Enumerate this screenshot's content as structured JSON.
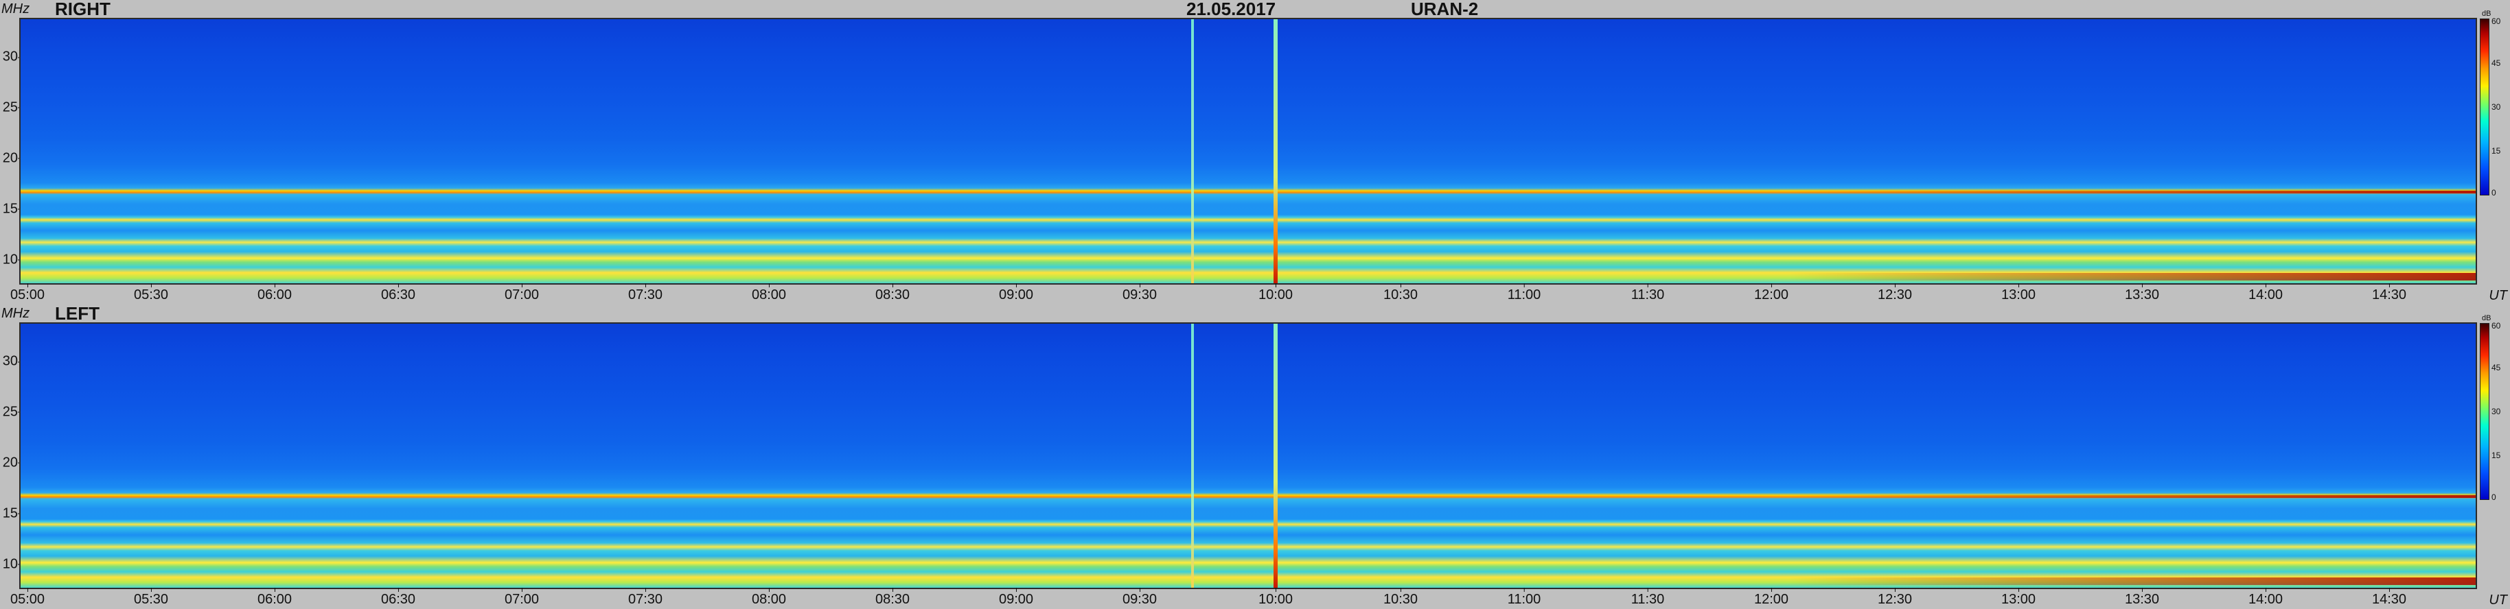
{
  "header": {
    "date": "21.05.2017",
    "instrument": "URAN-2"
  },
  "axes": {
    "y_unit": "MHz",
    "x_unit": "UT",
    "colorbar_unit": "dB"
  },
  "panels": [
    {
      "label": "RIGHT"
    },
    {
      "label": "LEFT"
    }
  ],
  "y_ticks": [
    "30",
    "25",
    "20",
    "15",
    "10"
  ],
  "x_ticks": [
    "05:00",
    "05:30",
    "06:00",
    "06:30",
    "07:00",
    "07:30",
    "08:00",
    "08:30",
    "09:00",
    "09:30",
    "10:00",
    "10:30",
    "11:00",
    "11:30",
    "12:00",
    "12:30",
    "13:00",
    "13:30",
    "14:00",
    "14:30"
  ],
  "colorbar_ticks": [
    "60",
    "45",
    "30",
    "15",
    "0"
  ],
  "colors": {
    "background": "#c0c0c0",
    "spectrum_low": "#0a3fd8",
    "spectrum_high": "#c81a00"
  },
  "chart_data": [
    {
      "type": "heatmap",
      "title": "RIGHT",
      "x": [
        "05:00",
        "05:30",
        "06:00",
        "06:30",
        "07:00",
        "07:30",
        "08:00",
        "08:30",
        "09:00",
        "09:30",
        "10:00",
        "10:30",
        "11:00",
        "11:30",
        "12:00",
        "12:30",
        "13:00",
        "13:30",
        "14:00",
        "14:30"
      ],
      "y_range_mhz": [
        8,
        34
      ],
      "y_ticks": [
        10,
        15,
        20,
        25,
        30
      ],
      "colorbar_range_db": [
        0,
        60
      ],
      "colorbar_ticks": [
        0,
        15,
        30,
        45,
        60
      ],
      "features": {
        "persistent_bands_mhz": [
          17.7,
          15.4,
          14.2,
          12.0,
          10.0
        ],
        "vertical_bursts_ut": [
          "09:40",
          "10:00"
        ]
      }
    },
    {
      "type": "heatmap",
      "title": "LEFT",
      "x": [
        "05:00",
        "05:30",
        "06:00",
        "06:30",
        "07:00",
        "07:30",
        "08:00",
        "08:30",
        "09:00",
        "09:30",
        "10:00",
        "10:30",
        "11:00",
        "11:30",
        "12:00",
        "12:30",
        "13:00",
        "13:30",
        "14:00",
        "14:30"
      ],
      "y_range_mhz": [
        8,
        34
      ],
      "y_ticks": [
        10,
        15,
        20,
        25,
        30
      ],
      "colorbar_range_db": [
        0,
        60
      ],
      "colorbar_ticks": [
        0,
        15,
        30,
        45,
        60
      ],
      "features": {
        "persistent_bands_mhz": [
          17.7,
          15.4,
          14.2,
          12.0,
          10.0
        ],
        "vertical_bursts_ut": [
          "09:40",
          "10:00"
        ]
      }
    }
  ]
}
